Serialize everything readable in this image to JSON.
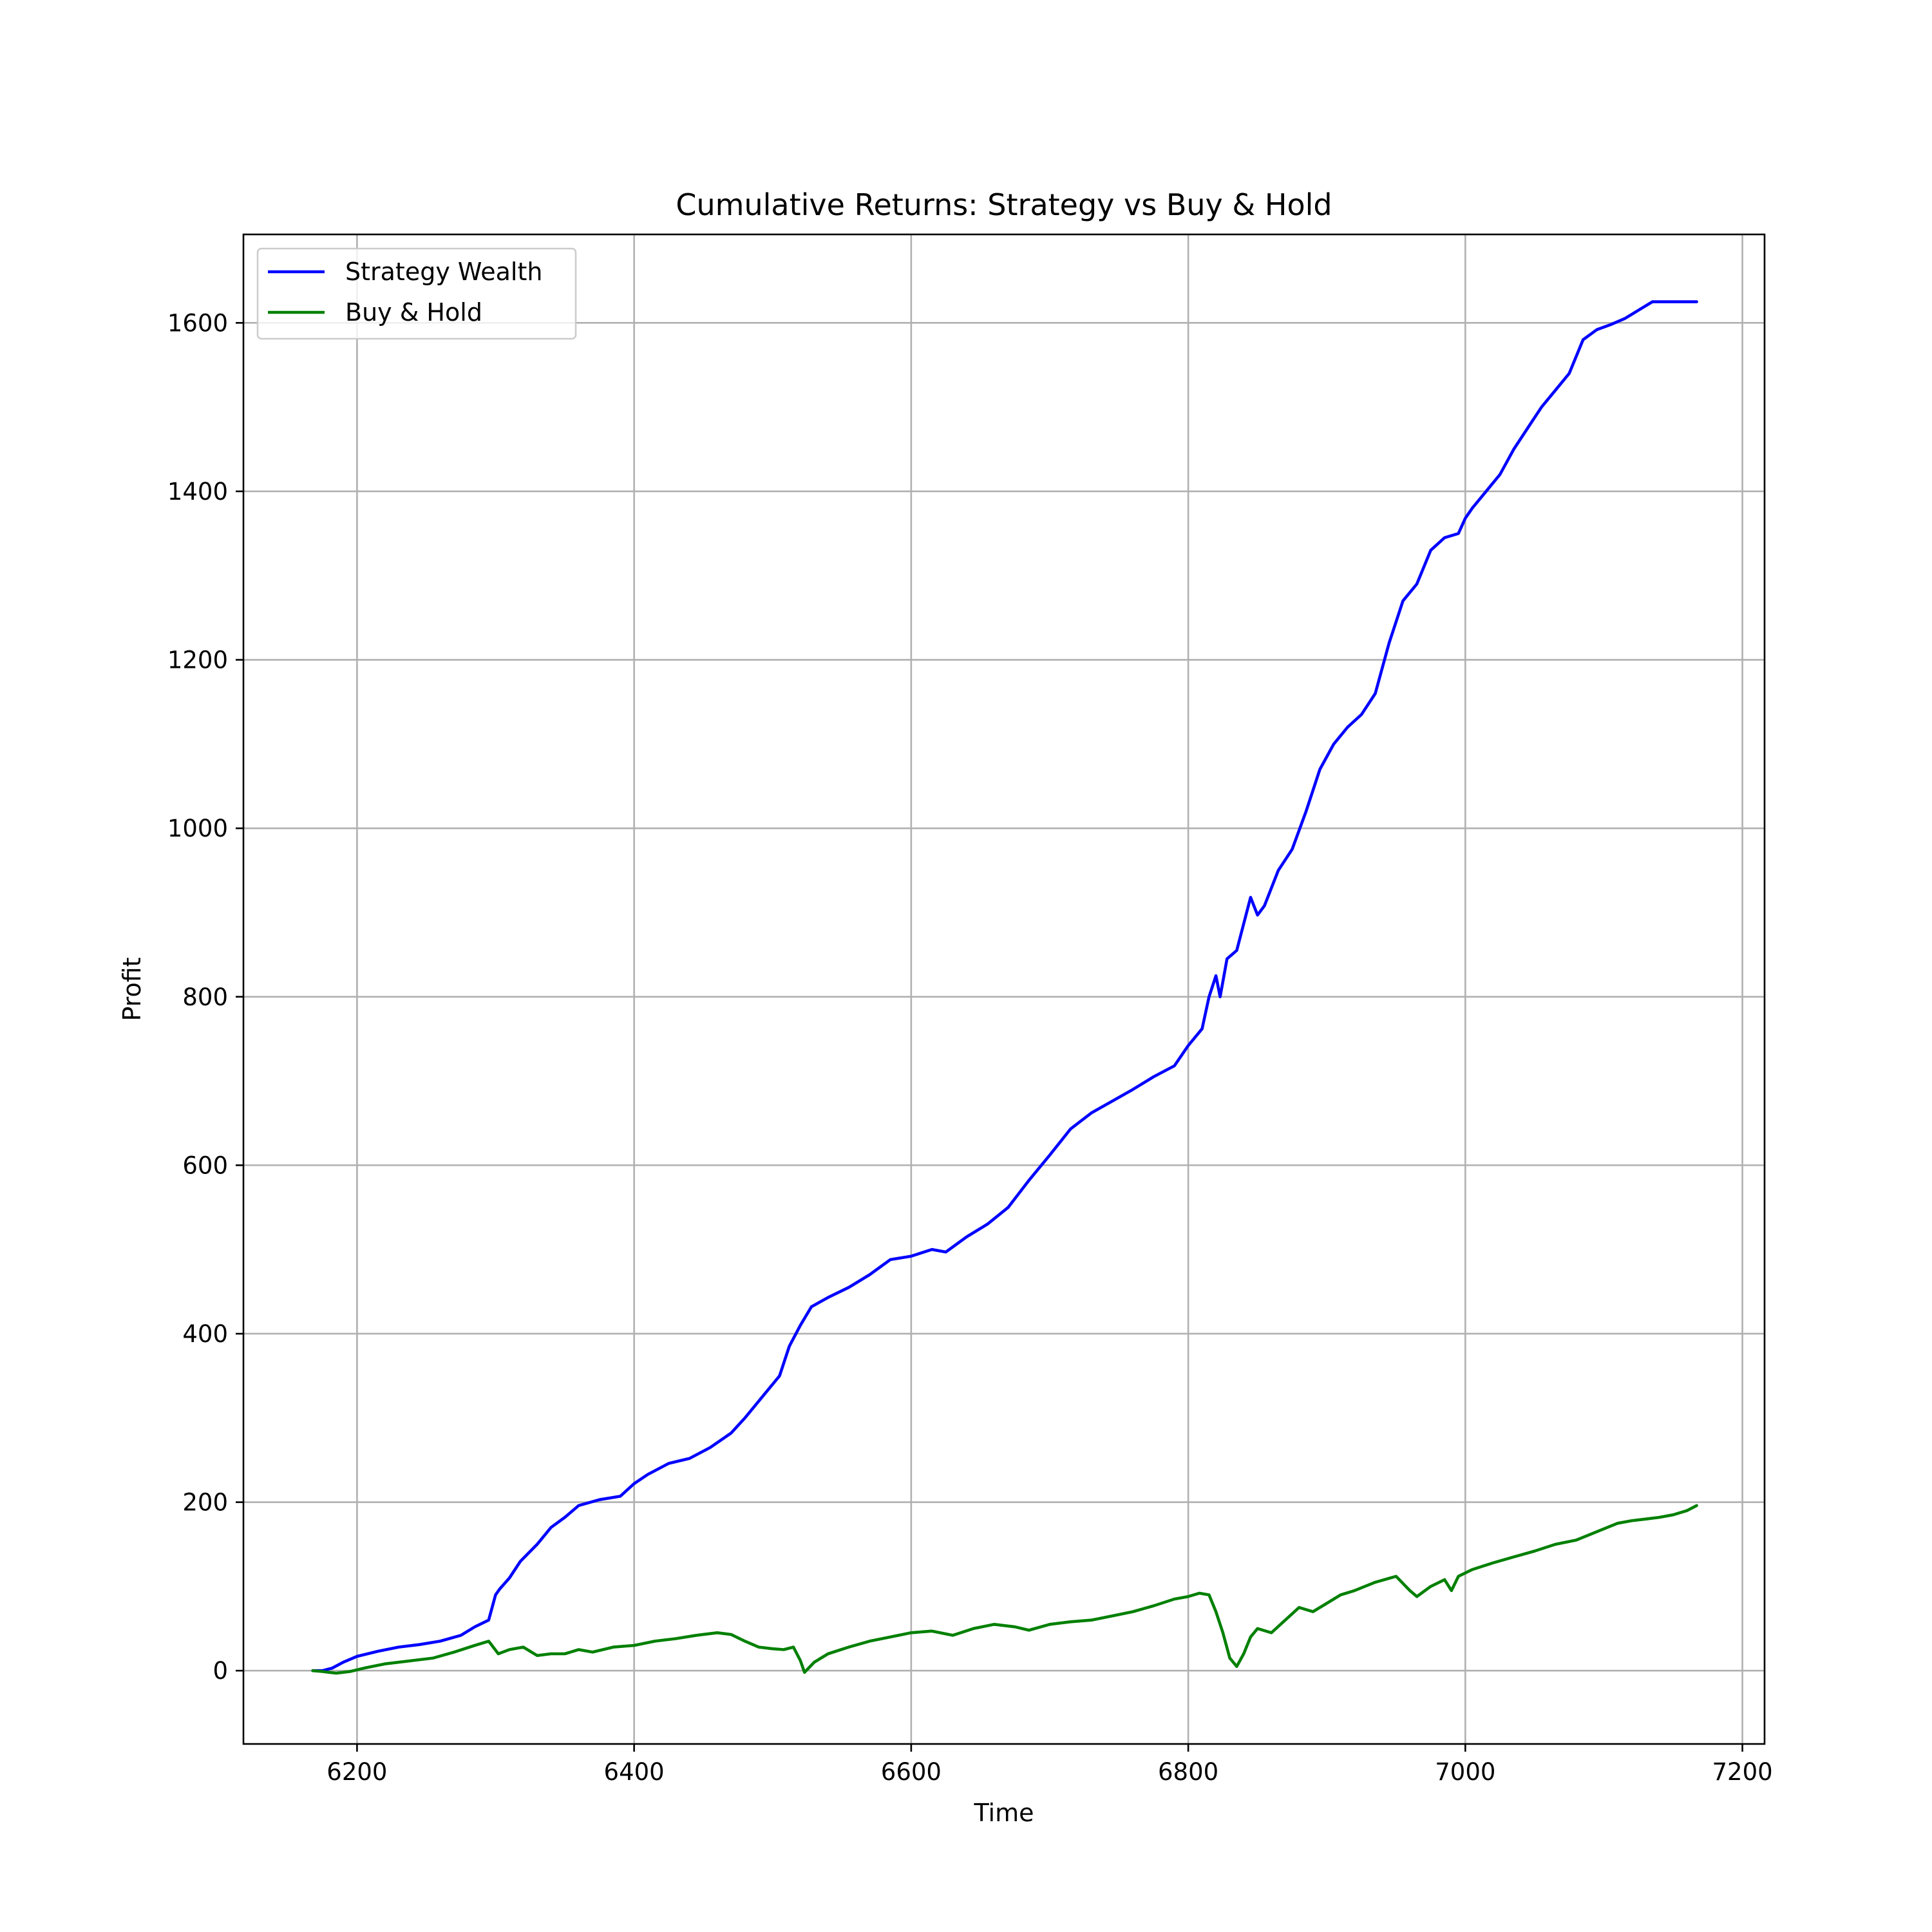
{
  "chart_data": {
    "type": "line",
    "title": "Cumulative Returns: Strategy vs Buy & Hold",
    "xlabel": "Time",
    "ylabel": "Profit",
    "xlim": [
      6118,
      7216
    ],
    "ylim": [
      -87,
      1705
    ],
    "x_ticks": [
      6200,
      6400,
      6600,
      6800,
      7000,
      7200
    ],
    "y_ticks": [
      0,
      200,
      400,
      600,
      800,
      1000,
      1200,
      1400,
      1600
    ],
    "grid": true,
    "legend_position": "upper left",
    "series": [
      {
        "name": "Strategy Wealth",
        "color": "#0000ff",
        "x": [
          6168,
          6175,
          6182,
          6190,
          6200,
          6215,
          6230,
          6245,
          6260,
          6275,
          6285,
          6295,
          6300,
          6303,
          6310,
          6318,
          6330,
          6340,
          6350,
          6360,
          6375,
          6390,
          6400,
          6410,
          6425,
          6440,
          6455,
          6470,
          6480,
          6495,
          6505,
          6512,
          6520,
          6528,
          6540,
          6555,
          6570,
          6585,
          6600,
          6615,
          6625,
          6640,
          6655,
          6670,
          6685,
          6700,
          6715,
          6730,
          6745,
          6760,
          6775,
          6790,
          6800,
          6810,
          6815,
          6820,
          6823,
          6828,
          6835,
          6845,
          6850,
          6855,
          6865,
          6875,
          6885,
          6895,
          6905,
          6915,
          6925,
          6935,
          6945,
          6955,
          6965,
          6975,
          6985,
          6995,
          7000,
          7005,
          7015,
          7025,
          7035,
          7045,
          7055,
          7065,
          7075,
          7085,
          7095,
          7105,
          7115,
          7125,
          7135,
          7145,
          7155,
          7162,
          7167
        ],
        "y": [
          0,
          0,
          3,
          10,
          17,
          23,
          28,
          31,
          35,
          42,
          52,
          60,
          90,
          97,
          110,
          130,
          150,
          170,
          182,
          196,
          203,
          207,
          222,
          233,
          246,
          252,
          265,
          282,
          300,
          330,
          350,
          385,
          410,
          432,
          443,
          455,
          470,
          488,
          492,
          500,
          497,
          515,
          530,
          550,
          582,
          612,
          643,
          662,
          676,
          690,
          705,
          718,
          742,
          762,
          800,
          825,
          800,
          845,
          855,
          918,
          897,
          908,
          950,
          975,
          1020,
          1070,
          1100,
          1120,
          1135,
          1160,
          1220,
          1270,
          1290,
          1330,
          1345,
          1350,
          1368,
          1380,
          1400,
          1420,
          1450,
          1475,
          1500,
          1520,
          1540,
          1580,
          1592,
          1598,
          1605,
          1615,
          1625,
          1625,
          1625,
          1625,
          1625
        ]
      },
      {
        "name": "Buy & Hold",
        "color": "#008000",
        "x": [
          6168,
          6175,
          6185,
          6195,
          6205,
          6220,
          6240,
          6255,
          6270,
          6285,
          6295,
          6302,
          6310,
          6320,
          6330,
          6340,
          6350,
          6360,
          6370,
          6385,
          6400,
          6415,
          6430,
          6445,
          6460,
          6470,
          6480,
          6490,
          6500,
          6508,
          6515,
          6520,
          6523,
          6530,
          6540,
          6555,
          6570,
          6585,
          6600,
          6615,
          6630,
          6645,
          6660,
          6675,
          6685,
          6700,
          6715,
          6730,
          6745,
          6760,
          6775,
          6790,
          6800,
          6808,
          6815,
          6820,
          6825,
          6830,
          6835,
          6840,
          6845,
          6850,
          6860,
          6870,
          6880,
          6890,
          6900,
          6910,
          6920,
          6935,
          6950,
          6960,
          6965,
          6975,
          6985,
          6990,
          6995,
          7005,
          7020,
          7035,
          7050,
          7065,
          7080,
          7095,
          7110,
          7120,
          7130,
          7140,
          7150,
          7160,
          7167
        ],
        "y": [
          0,
          -1,
          -3,
          -1,
          3,
          8,
          12,
          15,
          22,
          30,
          35,
          20,
          25,
          28,
          18,
          20,
          20,
          25,
          22,
          28,
          30,
          35,
          38,
          42,
          45,
          43,
          35,
          28,
          26,
          25,
          28,
          12,
          -2,
          10,
          20,
          28,
          35,
          40,
          45,
          47,
          42,
          50,
          55,
          52,
          48,
          55,
          58,
          60,
          65,
          70,
          77,
          85,
          88,
          92,
          90,
          70,
          45,
          15,
          5,
          20,
          40,
          50,
          45,
          60,
          75,
          70,
          80,
          90,
          95,
          105,
          112,
          95,
          88,
          100,
          108,
          95,
          112,
          120,
          128,
          135,
          142,
          150,
          155,
          165,
          175,
          178,
          180,
          182,
          185,
          190,
          196
        ]
      }
    ]
  }
}
